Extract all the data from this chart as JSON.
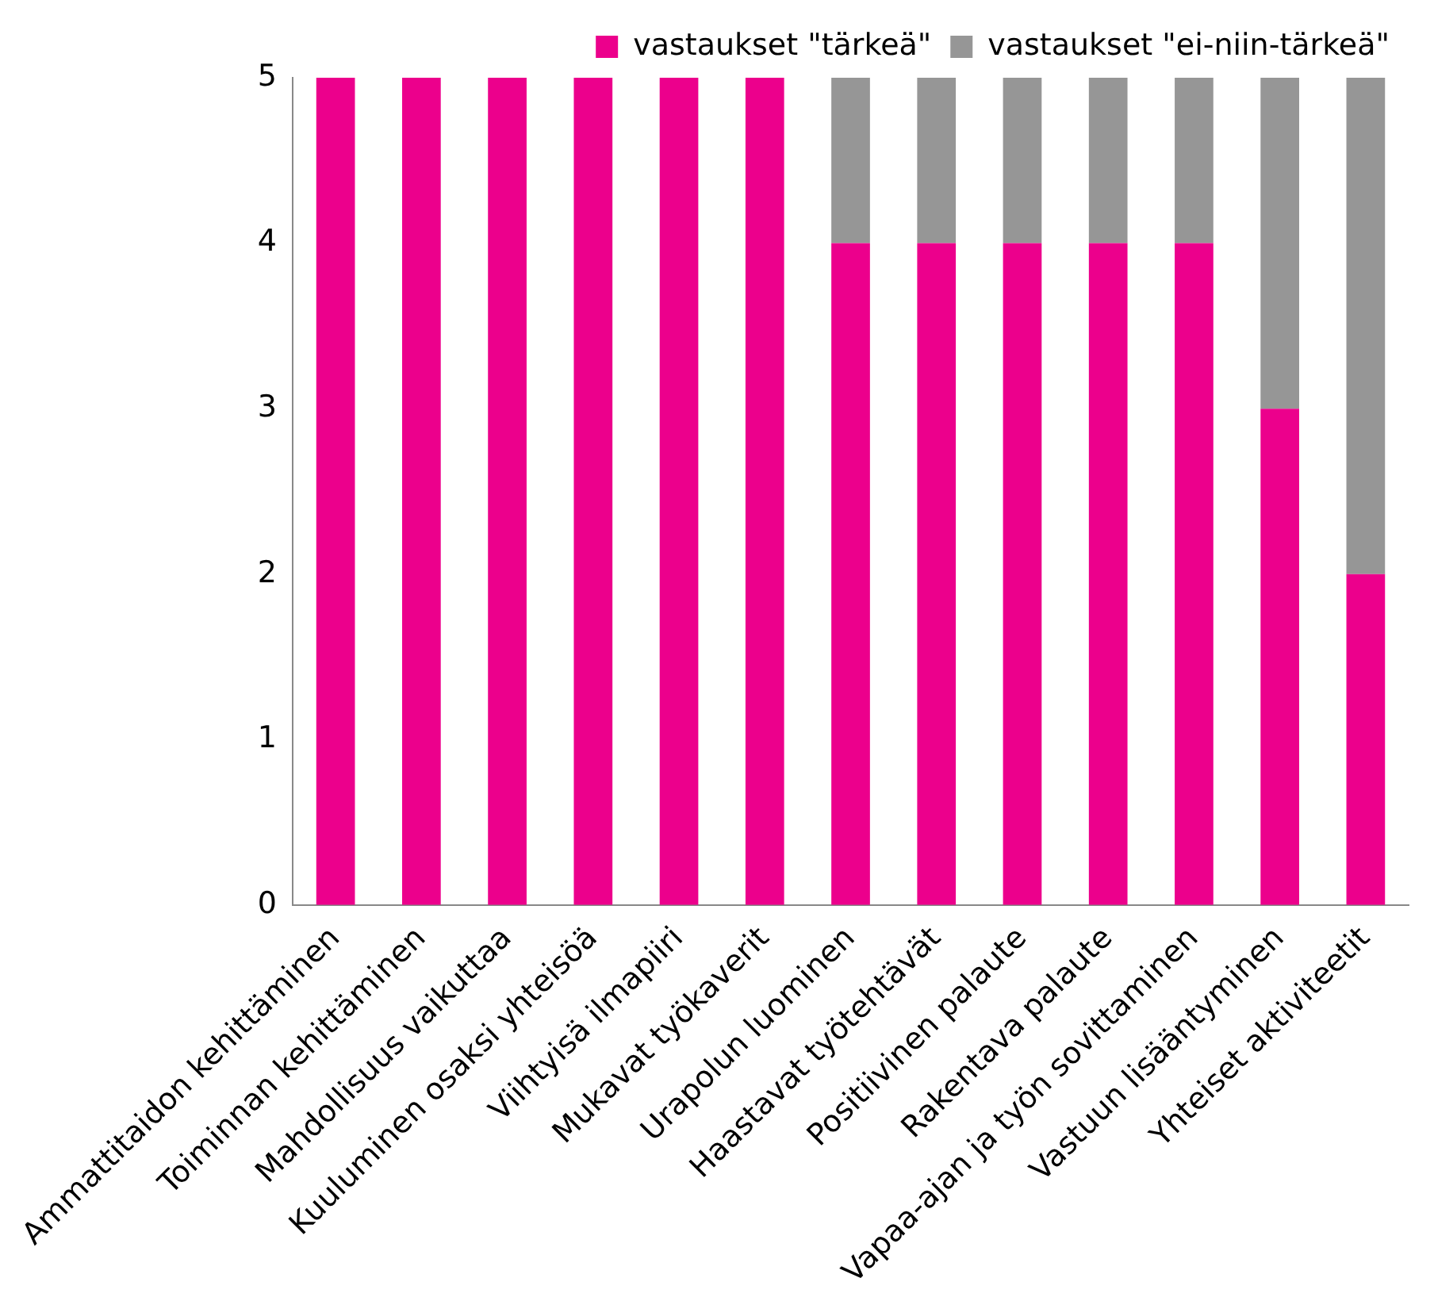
{
  "chart_data": {
    "type": "bar",
    "stacked": true,
    "categories": [
      "Ammattitaidon kehittäminen",
      "Toiminnan kehittäminen",
      "Mahdollisuus vaikuttaa",
      "Kuuluminen osaksi yhteisöä",
      "Viihtyisä ilmapiiri",
      "Mukavat työkaverit",
      "Urapolun luominen",
      "Haastavat työtehtävät",
      "Positiivinen palaute",
      "Rakentava palaute",
      "Vapaa-ajan ja työn sovittaminen",
      "Vastuun lisääntyminen",
      "Yhteiset aktiviteetit"
    ],
    "series": [
      {
        "name": "vastaukset \"tärkeä\"",
        "color": "#ec008c",
        "values": [
          5,
          5,
          5,
          5,
          5,
          5,
          4,
          4,
          4,
          4,
          4,
          3,
          2
        ]
      },
      {
        "name": "vastaukset \"ei-niin-tärkeä\"",
        "color": "#969696",
        "values": [
          0,
          0,
          0,
          0,
          0,
          0,
          1,
          1,
          1,
          1,
          1,
          2,
          3
        ]
      }
    ],
    "ylim": [
      0,
      5
    ],
    "yticks": [
      0,
      1,
      2,
      3,
      4,
      5
    ],
    "grid": false,
    "legend": "top right"
  }
}
